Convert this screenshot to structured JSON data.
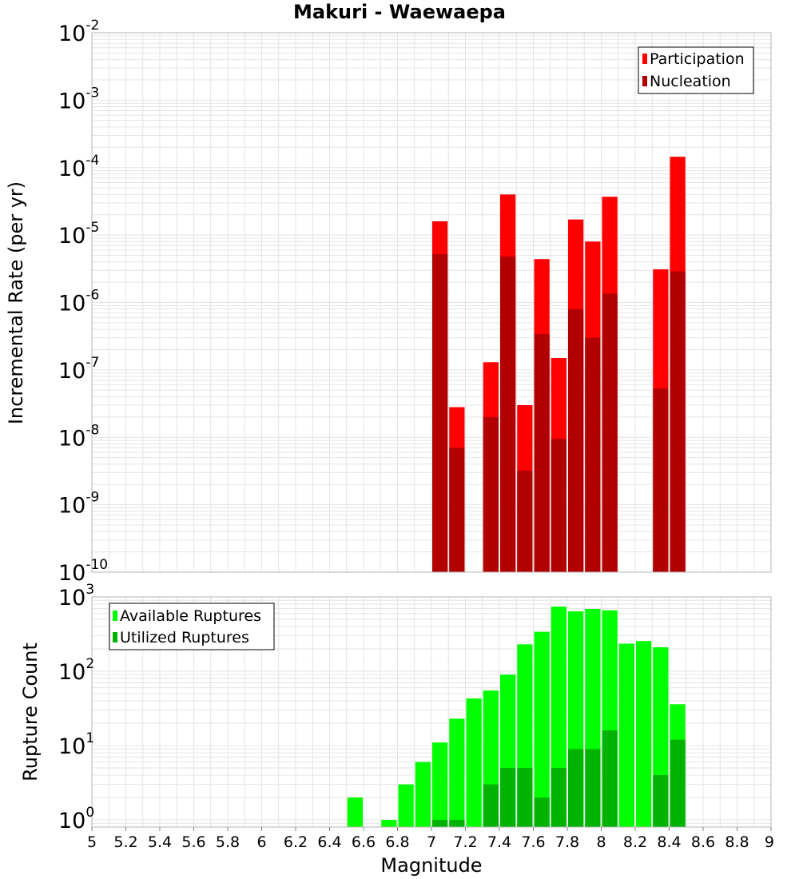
{
  "title": "Makuri - Waewaepa",
  "colors": {
    "participation": "#ff0000",
    "nucleation": "#b20000",
    "available": "#00ff00",
    "utilized": "#00b300",
    "grid": "#e4e4e4",
    "frame": "#b4b4b4"
  },
  "chart_data": [
    {
      "type": "bar",
      "title": "Makuri - Waewaepa",
      "xlabel": "",
      "ylabel": "Incremental Rate (per yr)",
      "yscale": "log",
      "ylim": [
        1e-10,
        0.01
      ],
      "xlim": [
        5,
        9
      ],
      "grid": true,
      "legend_position": "top-right",
      "y_ticks": [
        {
          "base": "10",
          "exp": "-10"
        },
        {
          "base": "10",
          "exp": "-9"
        },
        {
          "base": "10",
          "exp": "-8"
        },
        {
          "base": "10",
          "exp": "-7"
        },
        {
          "base": "10",
          "exp": "-6"
        },
        {
          "base": "10",
          "exp": "-5"
        },
        {
          "base": "10",
          "exp": "-4"
        },
        {
          "base": "10",
          "exp": "-3"
        },
        {
          "base": "10",
          "exp": "-2"
        }
      ],
      "series": [
        {
          "name": "Participation",
          "x": [
            7.05,
            7.15,
            7.35,
            7.45,
            7.55,
            7.65,
            7.75,
            7.85,
            7.95,
            8.05,
            8.35,
            8.45
          ],
          "values": [
            1.6e-05,
            2.8e-08,
            1.3e-07,
            4e-05,
            3e-08,
            4.4e-06,
            1.5e-07,
            1.7e-05,
            8e-06,
            3.7e-05,
            3.1e-06,
            0.000145
          ]
        },
        {
          "name": "Nucleation",
          "x": [
            7.05,
            7.15,
            7.35,
            7.45,
            7.55,
            7.65,
            7.75,
            7.85,
            7.95,
            8.05,
            8.35,
            8.45
          ],
          "values": [
            5.2e-06,
            7e-09,
            2e-08,
            4.8e-06,
            3.2e-09,
            3.4e-07,
            9.5e-09,
            8e-07,
            3e-07,
            1.35e-06,
            5.3e-08,
            2.9e-06
          ]
        }
      ]
    },
    {
      "type": "bar",
      "title": "",
      "xlabel": "Magnitude",
      "ylabel": "Rupture Count",
      "yscale": "log",
      "ylim": [
        0.8,
        1000
      ],
      "xlim": [
        5,
        9
      ],
      "grid": true,
      "legend_position": "top-left",
      "x_ticks": [
        "5",
        "5.2",
        "5.4",
        "5.6",
        "5.8",
        "6",
        "6.2",
        "6.4",
        "6.6",
        "6.8",
        "7",
        "7.2",
        "7.4",
        "7.6",
        "7.8",
        "8",
        "8.2",
        "8.4",
        "8.6",
        "8.8",
        "9"
      ],
      "y_ticks": [
        {
          "base": "10",
          "exp": "0"
        },
        {
          "base": "10",
          "exp": "1"
        },
        {
          "base": "10",
          "exp": "2"
        },
        {
          "base": "10",
          "exp": "3"
        }
      ],
      "series": [
        {
          "name": "Available Ruptures",
          "x": [
            6.55,
            6.75,
            6.85,
            6.95,
            7.05,
            7.15,
            7.25,
            7.35,
            7.45,
            7.55,
            7.65,
            7.75,
            7.85,
            7.95,
            8.05,
            8.15,
            8.25,
            8.35,
            8.45
          ],
          "values": [
            2,
            1,
            3,
            6,
            11,
            23,
            43,
            55,
            90,
            230,
            340,
            740,
            640,
            690,
            660,
            235,
            255,
            210,
            36
          ]
        },
        {
          "name": "Utilized Ruptures",
          "x": [
            7.05,
            7.15,
            7.35,
            7.45,
            7.55,
            7.65,
            7.75,
            7.85,
            7.95,
            8.05,
            8.35,
            8.45
          ],
          "values": [
            1,
            1,
            3,
            5,
            5,
            2,
            5,
            9,
            9,
            16,
            4,
            12
          ]
        }
      ]
    }
  ]
}
